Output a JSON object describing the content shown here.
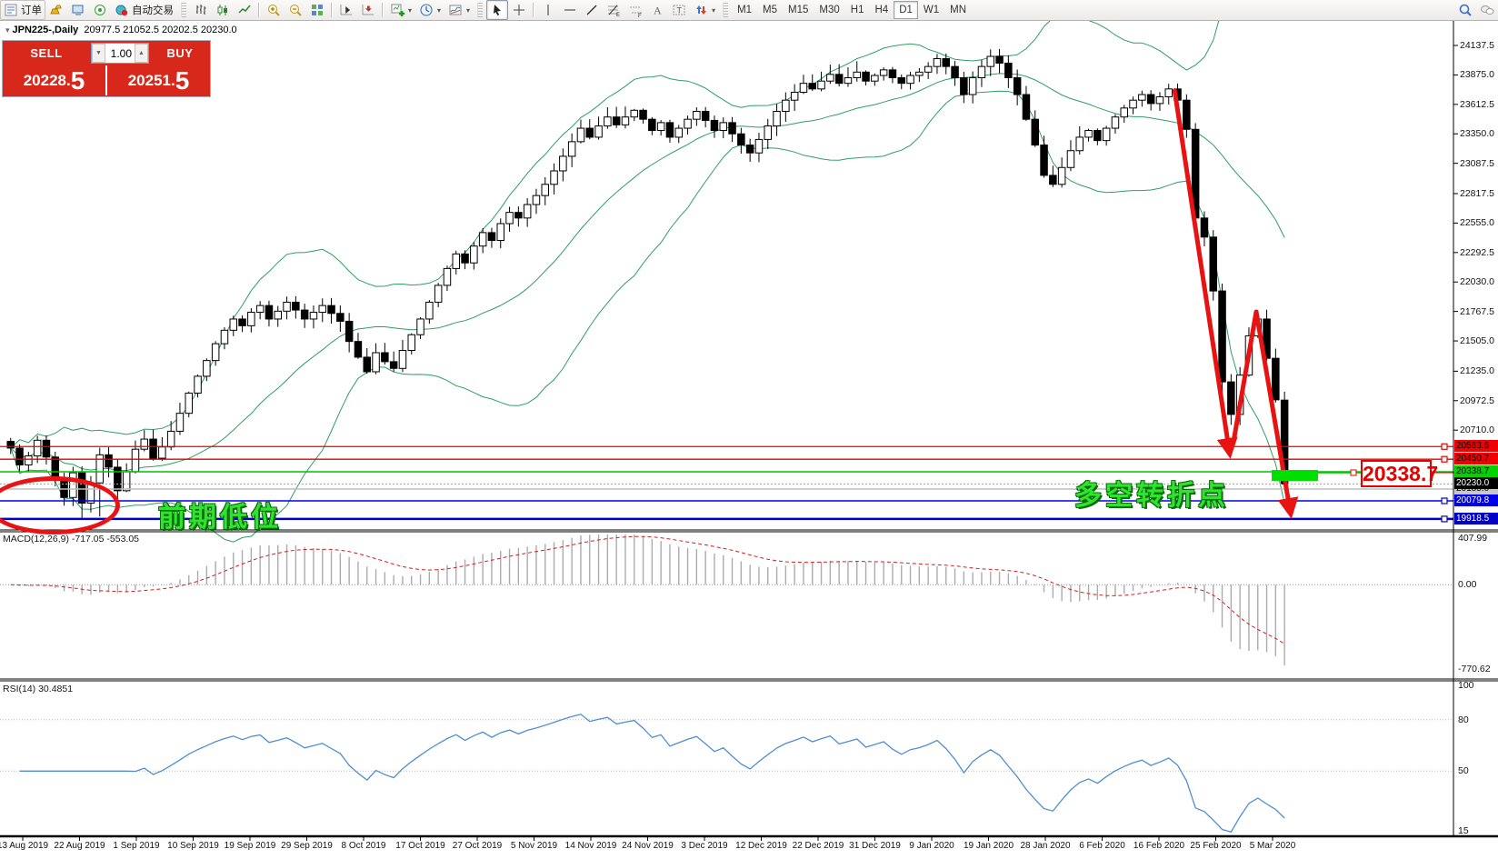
{
  "toolbar": {
    "items": [
      {
        "type": "btn",
        "name": "new-order-button",
        "icon": "order",
        "label": "订单"
      },
      {
        "type": "btn",
        "name": "gold-button",
        "icon": "gold"
      },
      {
        "type": "btn",
        "name": "terminal-button",
        "icon": "terminal"
      },
      {
        "type": "btn",
        "name": "signal-button",
        "icon": "signal"
      },
      {
        "type": "btn",
        "name": "auto-trading-button",
        "icon": "autotrade",
        "label": "自动交易"
      },
      {
        "type": "grip"
      },
      {
        "type": "btn",
        "name": "bar-chart-button",
        "icon": "bars"
      },
      {
        "type": "btn",
        "name": "candle-chart-button",
        "icon": "candles"
      },
      {
        "type": "btn",
        "name": "line-chart-button",
        "icon": "linechart"
      },
      {
        "type": "sep"
      },
      {
        "type": "btn",
        "name": "zoom-in-button",
        "icon": "zoomin"
      },
      {
        "type": "btn",
        "name": "zoom-out-button",
        "icon": "zoomout"
      },
      {
        "type": "btn",
        "name": "tile-windows-button",
        "icon": "tiles"
      },
      {
        "type": "sep"
      },
      {
        "type": "btn",
        "name": "auto-scroll-button",
        "icon": "autoscroll"
      },
      {
        "type": "btn",
        "name": "chart-shift-button",
        "icon": "shift"
      },
      {
        "type": "sep"
      },
      {
        "type": "btn",
        "name": "new-chart-button",
        "icon": "newchart",
        "dropdown": true
      },
      {
        "type": "btn",
        "name": "periods-button",
        "icon": "clock",
        "dropdown": true
      },
      {
        "type": "btn",
        "name": "templates-button",
        "icon": "template",
        "dropdown": true
      },
      {
        "type": "grip"
      },
      {
        "type": "btn",
        "name": "cursor-button",
        "icon": "cursor",
        "active": true
      },
      {
        "type": "btn",
        "name": "crosshair-button",
        "icon": "crosshair"
      },
      {
        "type": "sep"
      },
      {
        "type": "btn",
        "name": "vertical-line-button",
        "icon": "vline"
      },
      {
        "type": "btn",
        "name": "horizontal-line-button",
        "icon": "hline"
      },
      {
        "type": "btn",
        "name": "trendline-button",
        "icon": "tline"
      },
      {
        "type": "btn",
        "name": "fibonacci-button",
        "icon": "fibo"
      },
      {
        "type": "btn",
        "name": "channel-button",
        "icon": "channel"
      },
      {
        "type": "btn",
        "name": "text-button",
        "icon": "textA"
      },
      {
        "type": "btn",
        "name": "text-label-button",
        "icon": "textT"
      },
      {
        "type": "btn",
        "name": "arrows-button",
        "icon": "shapes",
        "dropdown": true
      },
      {
        "type": "grip"
      },
      {
        "type": "tf",
        "name": "tf-m1-button",
        "label": "M1"
      },
      {
        "type": "tf",
        "name": "tf-m5-button",
        "label": "M5"
      },
      {
        "type": "tf",
        "name": "tf-m15-button",
        "label": "M15"
      },
      {
        "type": "tf",
        "name": "tf-m30-button",
        "label": "M30"
      },
      {
        "type": "tf",
        "name": "tf-h1-button",
        "label": "H1"
      },
      {
        "type": "tf",
        "name": "tf-h4-button",
        "label": "H4"
      },
      {
        "type": "tf",
        "name": "tf-d1-button",
        "label": "D1",
        "active": true
      },
      {
        "type": "tf",
        "name": "tf-w1-button",
        "label": "W1"
      },
      {
        "type": "tf",
        "name": "tf-mn-button",
        "label": "MN"
      },
      {
        "type": "spacer"
      },
      {
        "type": "btn",
        "name": "search-button",
        "icon": "search"
      },
      {
        "type": "btn",
        "name": "chat-button",
        "icon": "chat"
      }
    ]
  },
  "chart_header": {
    "collapse_marker": "▾",
    "symbol_title": "JPN225-,Daily",
    "ohlc": "20977.5 21052.5 20202.5 20230.0"
  },
  "trade_panel": {
    "sell_label": "SELL",
    "buy_label": "BUY",
    "volume": "1.00",
    "sell_price_small": "20228.",
    "sell_price_big": "5",
    "buy_price_small": "20251.",
    "buy_price_big": "5"
  },
  "annotations": {
    "prev_low_label": "前期低位",
    "turning_point_label": "多空转折点",
    "price_box_value": "20338.7"
  },
  "price_axis": {
    "ticks": [
      24137.5,
      23875.0,
      23612.5,
      23350.0,
      23087.5,
      22817.5,
      22555.0,
      22292.5,
      22030.0,
      21767.5,
      21505.0,
      21235.0,
      20972.5,
      20710.0
    ],
    "tags": [
      {
        "text": "20563.6",
        "value": 20563.6,
        "bg": "#f00000",
        "fg": "#000000"
      },
      {
        "text": "20450.7",
        "value": 20450.7,
        "bg": "#f00000",
        "fg": "#000000"
      },
      {
        "text": "20338.7",
        "value": 20338.7,
        "bg": "#00d300",
        "fg": "#000000"
      },
      {
        "text": "20185.0",
        "value": 20185.0,
        "bg": "#c8c8c8",
        "fg": "#000000"
      },
      {
        "text": "20230.0",
        "value": 20230.0,
        "bg": "#000000",
        "fg": "#ffffff"
      },
      {
        "text": "20079.8",
        "value": 20079.8,
        "bg": "#0000e8",
        "fg": "#ffffff"
      },
      {
        "text": "19918.5",
        "value": 19918.5,
        "bg": "#0000c8",
        "fg": "#ffffff"
      }
    ]
  },
  "indicator_panes": {
    "macd": {
      "label": "MACD(12,26,9) -717.05 -553.05",
      "scale_max": "407.99",
      "scale_zero": "0.00",
      "scale_min": "-770.62"
    },
    "rsi": {
      "label": "RSI(14) 30.4851",
      "scale": [
        {
          "text": "100",
          "value": 100
        },
        {
          "text": "80",
          "value": 80
        },
        {
          "text": "50",
          "value": 50
        },
        {
          "text": "15",
          "value": 15
        }
      ]
    }
  },
  "date_axis": {
    "labels": [
      "13 Aug 2019",
      "22 Aug 2019",
      "1 Sep 2019",
      "10 Sep 2019",
      "19 Sep 2019",
      "29 Sep 2019",
      "8 Oct 2019",
      "17 Oct 2019",
      "27 Oct 2019",
      "5 Nov 2019",
      "14 Nov 2019",
      "24 Nov 2019",
      "3 Dec 2019",
      "12 Dec 2019",
      "22 Dec 2019",
      "31 Dec 2019",
      "9 Jan 2020",
      "19 Jan 2020",
      "28 Jan 2020",
      "6 Feb 2020",
      "16 Feb 2020",
      "25 Feb 2020",
      "5 Mar 2020"
    ]
  },
  "chart_data": {
    "type": "candlestick",
    "symbol": "JPN225-",
    "timeframe": "Daily",
    "last_bar": {
      "open": 20977.5,
      "high": 21052.5,
      "low": 20202.5,
      "close": 20230.0
    },
    "closes": [
      20550,
      20400,
      20480,
      20620,
      20470,
      20280,
      20110,
      20330,
      20060,
      20240,
      20490,
      20380,
      20170,
      20340,
      20540,
      20630,
      20460,
      20560,
      20700,
      20860,
      21040,
      21190,
      21330,
      21480,
      21600,
      21700,
      21640,
      21760,
      21820,
      21700,
      21770,
      21850,
      21780,
      21700,
      21760,
      21820,
      21750,
      21680,
      21500,
      21360,
      21230,
      21400,
      21320,
      21260,
      21420,
      21560,
      21700,
      21850,
      22000,
      22150,
      22280,
      22200,
      22350,
      22470,
      22400,
      22550,
      22650,
      22600,
      22720,
      22800,
      22900,
      23020,
      23150,
      23280,
      23400,
      23320,
      23420,
      23500,
      23430,
      23500,
      23560,
      23480,
      23380,
      23450,
      23320,
      23400,
      23480,
      23550,
      23470,
      23380,
      23450,
      23350,
      23250,
      23180,
      23300,
      23420,
      23550,
      23650,
      23720,
      23800,
      23750,
      23820,
      23880,
      23800,
      23850,
      23900,
      23820,
      23870,
      23920,
      23850,
      23800,
      23870,
      23900,
      23950,
      24020,
      23950,
      23850,
      23700,
      23850,
      23950,
      24040,
      23980,
      23850,
      23700,
      23480,
      23250,
      22980,
      22900,
      23050,
      23200,
      23320,
      23380,
      23290,
      23400,
      23500,
      23580,
      23650,
      23700,
      23620,
      23680,
      23750,
      23650,
      23390,
      22600,
      22430,
      21950,
      21140,
      20850,
      21200,
      21550,
      21700,
      21350,
      20980,
      20230
    ],
    "low_overrides": {
      "8": 19925,
      "10": 19940
    },
    "overlays": [
      {
        "name": "Bollinger Bands",
        "color": "#2f9e64"
      }
    ],
    "h_lines": [
      {
        "value": 20563.6,
        "color": "#e80000",
        "width": 1.3,
        "handle": true
      },
      {
        "value": 20450.7,
        "color": "#e80000",
        "width": 1.3,
        "handle": true
      },
      {
        "value": 20338.7,
        "color": "#00c000",
        "width": 1.5,
        "handle": false
      },
      {
        "value": 20185.0,
        "color": "#bebebe",
        "width": 1.5,
        "handle": false
      },
      {
        "value": 20079.8,
        "color": "#0000f0",
        "width": 1.5,
        "handle": true
      },
      {
        "value": 19918.5,
        "color": "#0000c8",
        "width": 2.5,
        "handle": true
      }
    ],
    "current_price": 20230.0
  }
}
